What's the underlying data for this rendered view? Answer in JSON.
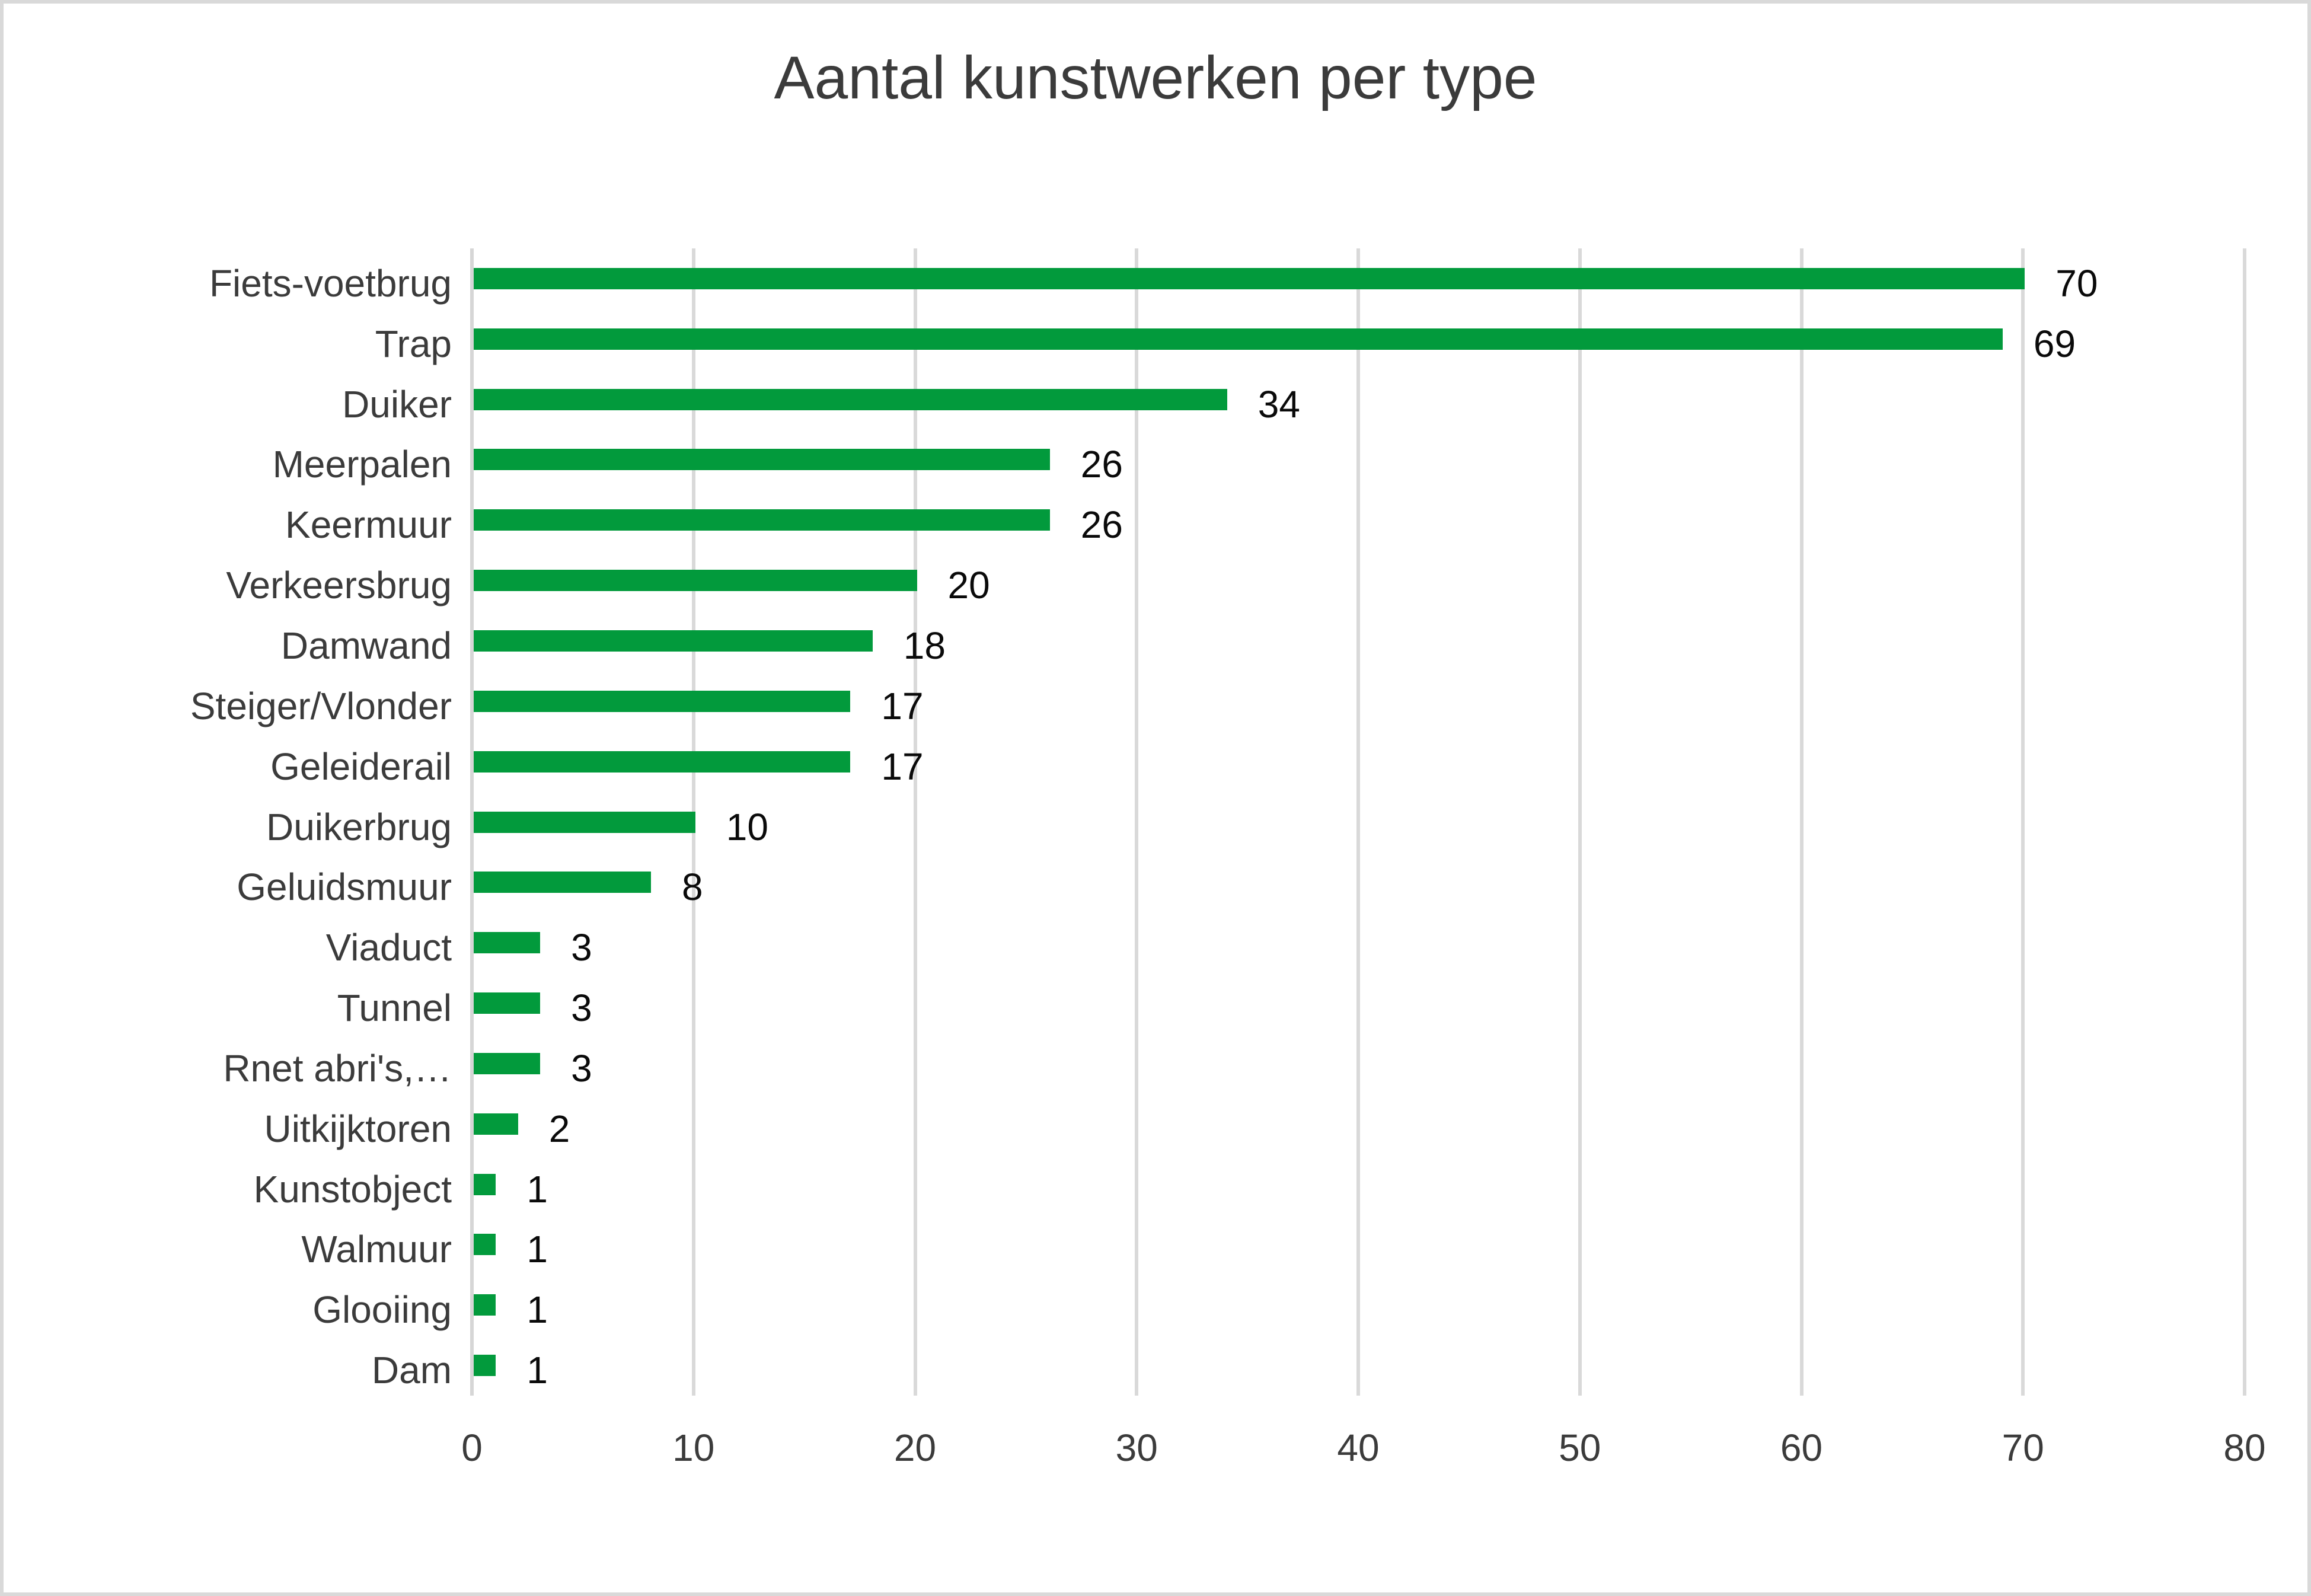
{
  "chart_data": {
    "type": "bar",
    "orientation": "horizontal",
    "title": "Aantal kunstwerken per type",
    "categories": [
      "Fiets-voetbrug",
      "Trap",
      "Duiker",
      "Meerpalen",
      "Keermuur",
      "Verkeersbrug",
      "Damwand",
      "Steiger/Vlonder",
      "Geleiderail",
      "Duikerbrug",
      "Geluidsmuur",
      "Viaduct",
      "Tunnel",
      "Rnet abri's,…",
      "Uitkijktoren",
      "Kunstobject",
      "Walmuur",
      "Glooiing",
      "Dam"
    ],
    "values": [
      70,
      69,
      34,
      26,
      26,
      20,
      18,
      17,
      17,
      10,
      8,
      3,
      3,
      3,
      2,
      1,
      1,
      1,
      1
    ],
    "xlabel": "",
    "ylabel": "",
    "xlim": [
      0,
      80
    ],
    "x_ticks": [
      0,
      10,
      20,
      30,
      40,
      50,
      60,
      70,
      80
    ],
    "gridlines": "vertical",
    "legend": "none",
    "data_labels": "outside-end",
    "colors": {
      "bar": "#029a3c",
      "gridline": "#d9d9d9",
      "axis_line": "#d6d6d6",
      "category_text": "#3b3b3b",
      "tick_text": "#3b3b3b",
      "value_text": "#0a0a0a",
      "title_text": "#3b3b3b",
      "frame_border": "#d9d9d9",
      "background": "#ffffff"
    }
  }
}
